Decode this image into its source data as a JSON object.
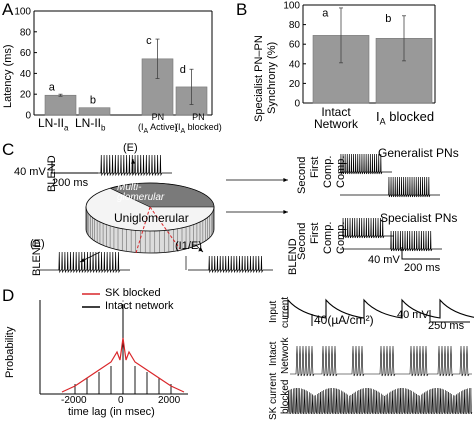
{
  "panels": {
    "A": {
      "letter": "A",
      "ylabel": "Latency (ms)",
      "yticks": [
        "0",
        "20",
        "40",
        "60",
        "80",
        "100"
      ],
      "xlabels": [
        {
          "main": "LN-II",
          "sub": "a"
        },
        {
          "main": "LN-II",
          "sub": "b"
        }
      ],
      "pn_labels": [
        {
          "line1": "PN",
          "line2": "(I",
          "sub": "A",
          "line2b": " Active)"
        },
        {
          "line1": "PN",
          "line2": "(I",
          "sub": "A",
          "line2b": " blocked)"
        }
      ],
      "sig_letters": [
        "a",
        "b",
        "c",
        "d"
      ]
    },
    "B": {
      "letter": "B",
      "ylabel_line1": "Specialist PN–PN",
      "ylabel_line2": "Synchrony (%)",
      "yticks": [
        "0",
        "20",
        "40",
        "60",
        "80",
        "100"
      ],
      "xlabels": [
        {
          "line1": "Intact",
          "line2": "Network"
        },
        {
          "main": "I",
          "sub": "A",
          "rest": " blocked"
        }
      ],
      "sig_letters": [
        "a",
        "b"
      ]
    },
    "C": {
      "letter": "C",
      "blend_top": "BLEND",
      "blend_bottom": "BLEND",
      "blend_right": "BLEND",
      "e_top": "(E)",
      "e_bottom": "(E)",
      "i1e": "(I1/E)",
      "scale_mv": "40 mV",
      "scale_ms": "200 ms",
      "scale_mv_right": "40 mV",
      "scale_ms_right": "200 ms",
      "multi_label": "Multi-\nglomerular",
      "uni_label": "Uniglomerular",
      "generalist_label": "Generalist PNs",
      "specialist_label": "Specialist PNs",
      "comp_top": [
        "Second",
        "First",
        "Comp.",
        "Comp."
      ],
      "comp_bottom": [
        "Second",
        "First",
        "Comp.",
        "Comp."
      ]
    },
    "D": {
      "letter": "D",
      "ylabel": "Probability",
      "xlabel": "time lag (in msec)",
      "xticks": [
        "-2000",
        "0",
        "2000"
      ],
      "legend": [
        "SK blocked",
        "Intact network"
      ],
      "legend_colors": [
        "#d9262a",
        "#000000"
      ],
      "input_label_1": "Input",
      "input_label_2": "current",
      "intact_label_1": "Intact",
      "intact_label_2": "Network",
      "sk_label_1": "SK current",
      "sk_label_2": "blocked",
      "scale_current": "40(µA/cm²)",
      "scale_mv": "40 mV",
      "scale_ms": "250 ms"
    }
  },
  "chart_data": [
    {
      "type": "bar",
      "panel": "A",
      "ylabel": "Latency (ms)",
      "ylim": [
        0,
        100
      ],
      "categories": [
        "LN-II a",
        "LN-II b",
        "PN (IA Active)",
        "PN (IA blocked)"
      ],
      "values": [
        19,
        7,
        54,
        27
      ],
      "errors": [
        1,
        0,
        19,
        17
      ],
      "labels": [
        "a",
        "b",
        "c",
        "d"
      ]
    },
    {
      "type": "bar",
      "panel": "B",
      "ylabel": "Specialist PN–PN Synchrony (%)",
      "ylim": [
        0,
        100
      ],
      "categories": [
        "Intact Network",
        "IA blocked"
      ],
      "values": [
        69,
        66
      ],
      "errors": [
        28,
        23
      ],
      "labels": [
        "a",
        "b"
      ]
    }
  ]
}
